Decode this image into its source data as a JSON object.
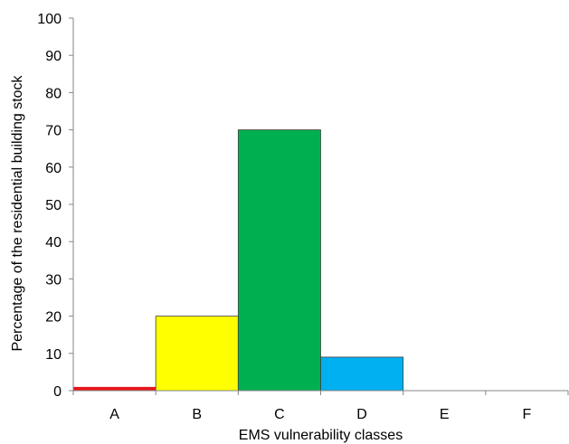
{
  "chart_data": {
    "type": "bar",
    "categories": [
      "A",
      "B",
      "C",
      "D",
      "E",
      "F"
    ],
    "values": [
      1,
      20,
      70,
      9,
      0,
      0
    ],
    "colors": [
      "#e8141a",
      "#ffff00",
      "#00b050",
      "#00b0f0",
      "#ffffff",
      "#ffffff"
    ],
    "xlabel": "EMS vulnerability classes",
    "ylabel": "Percentage of the residential building stock",
    "ylim": [
      0,
      100
    ],
    "yticks": [
      0,
      10,
      20,
      30,
      40,
      50,
      60,
      70,
      80,
      90,
      100
    ],
    "grid": false,
    "bar_gap": 0
  }
}
